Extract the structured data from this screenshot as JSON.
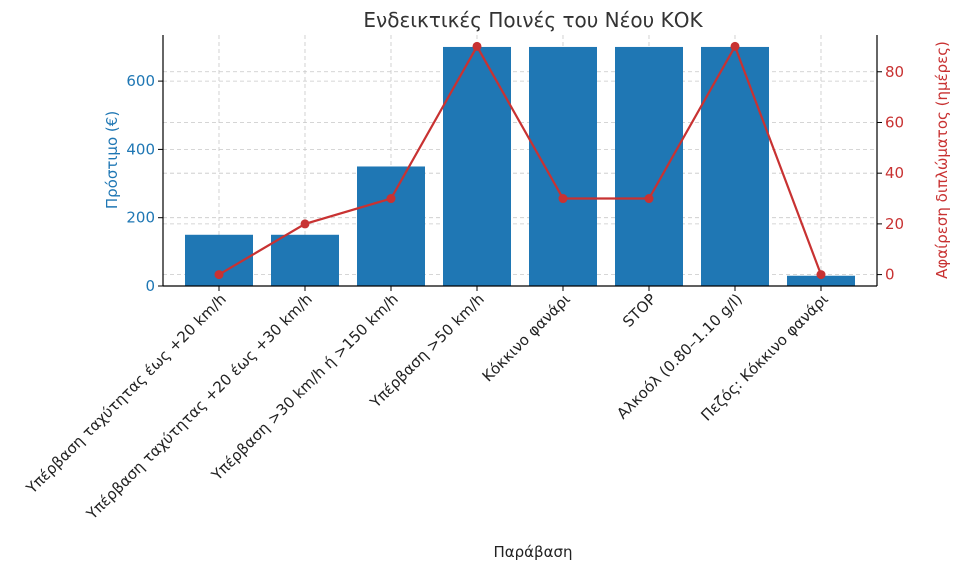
{
  "chart_data": {
    "type": "bar",
    "title": "Ενδεικτικές Ποινές του Νέου ΚΟΚ",
    "xlabel": "Παράβαση",
    "ylabel": "Πρόστιμο (€)",
    "y2label": "Αφαίρεση διπλώματος (ημέρες)",
    "categories": [
      "Υπέρβαση ταχύτητας έως +20 km/h",
      "Υπέρβαση ταχύτητας +20 έως +30 km/h",
      "Υπέρβαση >30 km/h ή >150 km/h",
      "Υπέρβαση >50 km/h",
      "Κόκκινο φανάρι",
      "STOP",
      "Αλκοόλ (0.80–1.10 g/l)",
      "Πεζός: Κόκκινο φανάρι"
    ],
    "series": [
      {
        "name": "Πρόστιμο (€)",
        "type": "bar",
        "axis": "left",
        "values": [
          150,
          150,
          350,
          700,
          700,
          700,
          700,
          30
        ]
      },
      {
        "name": "Αφαίρεση διπλώματος (ημέρες)",
        "type": "line",
        "axis": "right",
        "values": [
          0,
          20,
          30,
          90,
          30,
          30,
          90,
          0
        ]
      }
    ],
    "ylim": [
      0,
      735
    ],
    "y2lim": [
      -4.5,
      94.5
    ],
    "yticks": [
      0,
      200,
      400,
      600
    ],
    "y2ticks": [
      0,
      20,
      40,
      60,
      80
    ],
    "grid": true,
    "colors": {
      "bars": "#1f77b4",
      "line": "#c83232",
      "left_axis": "#1f77b4",
      "right_axis": "#c83232"
    }
  }
}
